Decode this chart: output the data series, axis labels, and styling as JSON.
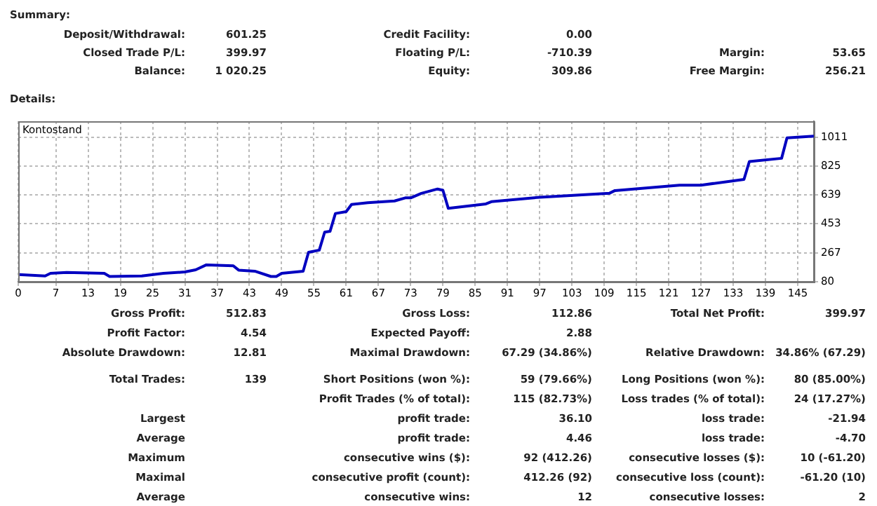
{
  "chart_data": {
    "type": "line",
    "title": "Kontostand",
    "x": [
      0,
      5,
      6,
      9,
      16,
      17,
      23,
      27,
      31,
      33,
      35,
      40,
      41,
      44,
      47,
      48,
      49,
      53,
      54,
      56,
      57,
      58,
      59,
      61,
      62,
      65,
      70,
      72,
      73,
      75,
      78,
      79,
      80,
      87,
      88,
      97,
      110,
      111,
      123,
      127,
      135,
      136,
      142,
      143,
      148
    ],
    "series": [
      {
        "color": "#0000c0",
        "values": [
          126,
          117,
          134,
          140,
          134,
          114,
          117,
          134,
          143,
          157,
          189,
          183,
          155,
          148,
          114,
          114,
          134,
          148,
          270,
          284,
          400,
          405,
          520,
          532,
          578,
          590,
          601,
          621,
          621,
          650,
          678,
          670,
          553,
          582,
          596,
          625,
          651,
          668,
          703,
          703,
          740,
          855,
          876,
          1008,
          1019
        ]
      }
    ],
    "xlim": [
      0,
      148
    ],
    "xticks": [
      0,
      7,
      13,
      19,
      25,
      31,
      37,
      43,
      49,
      55,
      61,
      67,
      73,
      79,
      85,
      91,
      97,
      103,
      109,
      115,
      121,
      127,
      133,
      139,
      145
    ],
    "ylim": [
      80,
      1115
    ],
    "yticks": [
      80,
      267,
      453,
      639,
      825,
      1011
    ],
    "grid": true,
    "legend": false,
    "marker": "none",
    "line_style": "solid",
    "annotations": [
      "Summary:",
      "Deposit/Withdrawal: 601.25",
      "Credit Facility: 0.00",
      "Closed Trade P/L: 399.97",
      "Floating P/L: -710.39",
      "Margin: 53.65",
      "Balance: 1 020.25",
      "Equity: 309.86",
      "Free Margin: 256.21",
      "Details:",
      "Gross Profit: 512.83",
      "Gross Loss: 112.86",
      "Total Net Profit: 399.97",
      "Profit Factor: 4.54",
      "Expected Payoff: 2.88",
      "Absolute Drawdown: 12.81",
      "Maximal Drawdown: 67.29 (34.86%)",
      "Relative Drawdown: 34.86% (67.29)",
      "Total Trades: 139",
      "Short Positions (won %): 59 (79.66%)",
      "Long Positions (won %): 80 (85.00%)",
      "Profit Trades (% of total): 115 (82.73%)",
      "Loss trades (% of total): 24 (17.27%)",
      "Largest",
      "profit trade: 36.10",
      "loss trade: -21.94",
      "Average",
      "profit trade: 4.46",
      "loss trade: -4.70",
      "Maximum",
      "consecutive wins ($): 92 (412.26)",
      "consecutive losses ($): 10 (-61.20)",
      "Maximal",
      "consecutive profit (count): 412.26 (92)",
      "consecutive loss (count): -61.20 (10)",
      "Average",
      "consecutive wins: 12",
      "consecutive losses: 2"
    ]
  }
}
